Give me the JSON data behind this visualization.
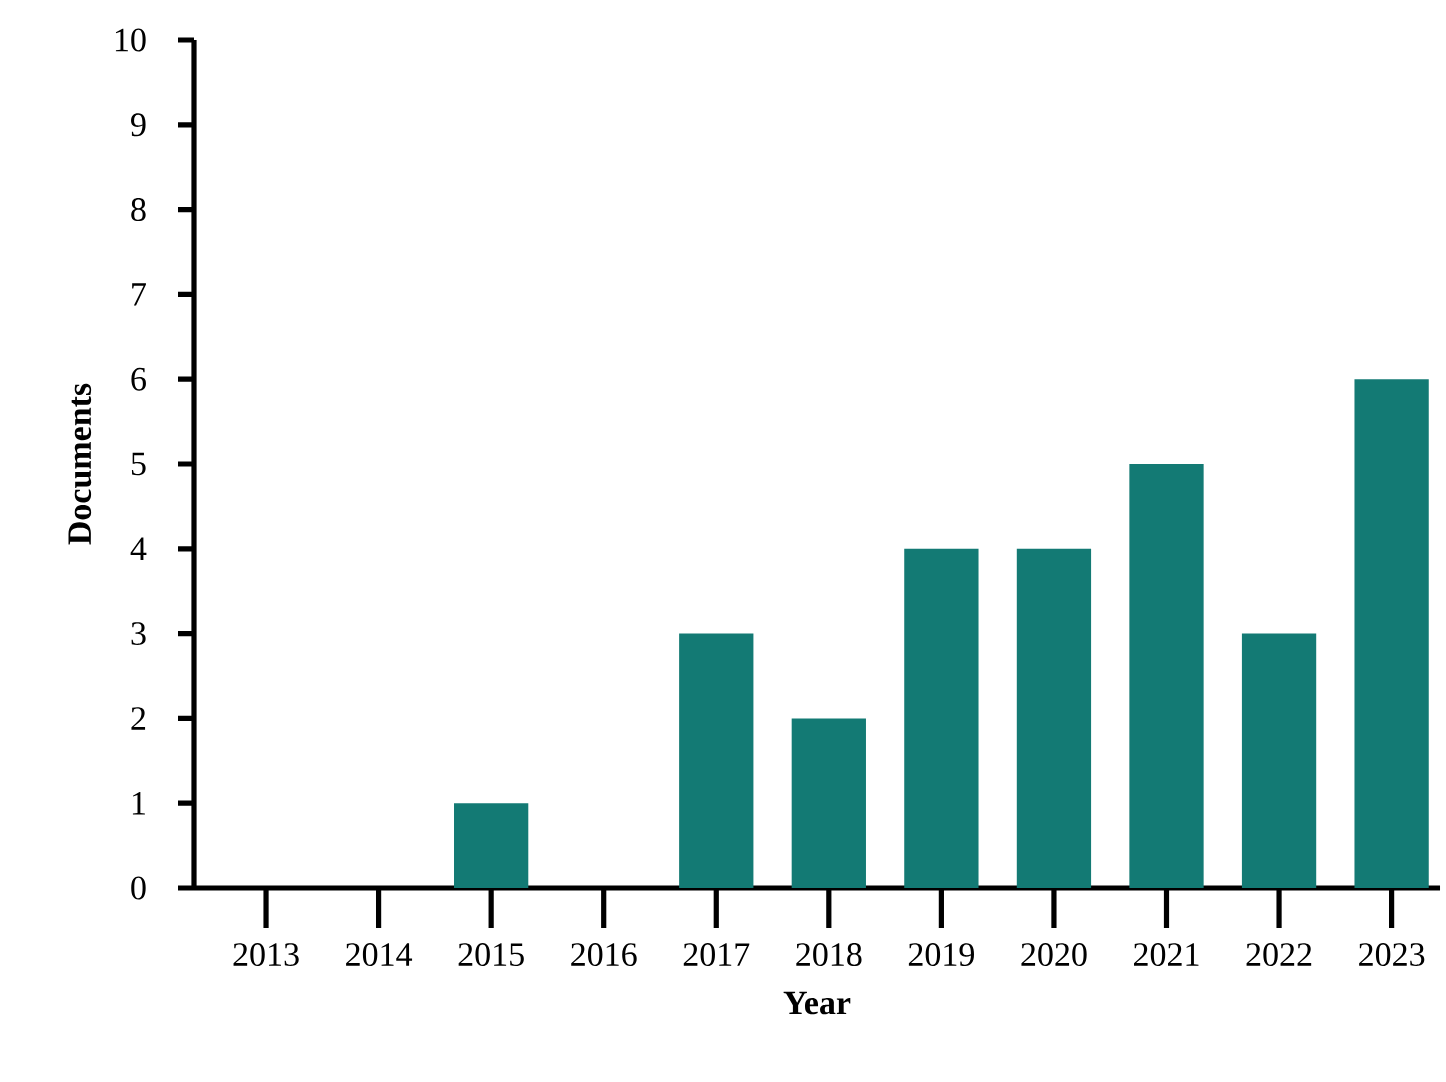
{
  "chart_data": {
    "type": "bar",
    "xlabel": "Year",
    "ylabel": "Documents",
    "categories": [
      "2013",
      "2014",
      "2015",
      "2016",
      "2017",
      "2018",
      "2019",
      "2020",
      "2021",
      "2022",
      "2023"
    ],
    "values": [
      0,
      0,
      1,
      0,
      3,
      2,
      4,
      4,
      5,
      3,
      6
    ],
    "color": "#137a74",
    "ylim": [
      0,
      10
    ],
    "yticks": [
      0,
      1,
      2,
      3,
      4,
      5,
      6,
      7,
      8,
      9,
      10
    ]
  }
}
